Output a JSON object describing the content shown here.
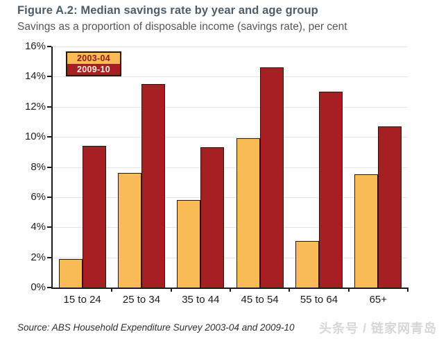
{
  "chart_data": {
    "type": "bar",
    "title": "Figure A.2: Median savings rate by year and age group",
    "subtitle": "Savings as a proportion of disposable income (savings rate), per cent",
    "categories": [
      "15 to 24",
      "25 to 34",
      "35 to 44",
      "45 to 54",
      "55 to 64",
      "65+"
    ],
    "series": [
      {
        "name": "2003-04",
        "color": "#F8BB56",
        "label_color": "#8E1C1C",
        "values": [
          1.9,
          7.6,
          5.8,
          9.9,
          3.1,
          7.5
        ]
      },
      {
        "name": "2009-10",
        "color": "#A51F23",
        "label_color": "#FBEFE4",
        "values": [
          9.4,
          13.5,
          9.3,
          14.6,
          13.0,
          10.7
        ]
      }
    ],
    "ylim": [
      0,
      16
    ],
    "ytick_step": 2,
    "ytick_suffix": "%",
    "grid": true,
    "legend_position": "top-left",
    "xlabel": "",
    "ylabel": ""
  },
  "footer": {
    "source": "Source: ABS Household Expenditure Survey 2003-04 and 2009-10",
    "watermark": "头条号 / 链家网青岛"
  },
  "colors": {
    "title": "#4e5d68",
    "subtitle": "#565656",
    "axis": "#1c1c1c",
    "grid": "#e4e4e4",
    "bar_border": "#2b150b",
    "series_2003_04": "#F8BB56",
    "series_2009_10": "#A51F23",
    "watermark": "#d7d7d7"
  }
}
